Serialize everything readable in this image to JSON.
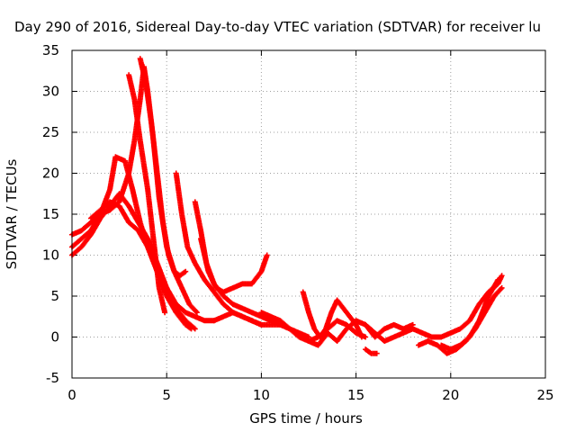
{
  "chart_data": {
    "type": "scatter",
    "title": "Day 290 of 2016, Sidereal Day-to-day VTEC variation (SDTVAR) for receiver lu",
    "xlabel": "GPS time / hours",
    "ylabel": "SDTVAR / TECUs",
    "xlim": [
      0,
      25
    ],
    "ylim": [
      -5,
      35
    ],
    "xticks": [
      "0",
      "5",
      "10",
      "15",
      "20",
      "25"
    ],
    "yticks": [
      "-5",
      "0",
      "5",
      "10",
      "15",
      "20",
      "25",
      "30",
      "35"
    ],
    "grid": true,
    "marker": "+",
    "color": "#ff0000",
    "series": [
      {
        "x": [
          0,
          0.5,
          1,
          1.5,
          2,
          2.5,
          3,
          3.3,
          3.6,
          3.8,
          4.0,
          4.3,
          4.6,
          5.0,
          5.4,
          5.8,
          6.2,
          6.6
        ],
        "y": [
          12.5,
          13,
          14,
          15,
          15.5,
          16.5,
          20,
          24,
          29,
          33,
          30,
          24,
          17,
          11,
          8,
          6,
          4,
          3
        ]
      },
      {
        "x": [
          0,
          0.5,
          1,
          1.5,
          2,
          2.3,
          2.8,
          3.2,
          3.6,
          4.0,
          4.5,
          5.0,
          5.5,
          6.0,
          6.3
        ],
        "y": [
          11,
          12,
          13,
          15,
          18,
          22,
          21.5,
          18,
          14,
          11,
          8,
          5,
          3,
          1.5,
          1
        ]
      },
      {
        "x": [
          0,
          0.5,
          1,
          1.5,
          2,
          2.5,
          3,
          3.5,
          4.0,
          4.5,
          5.0,
          5.5,
          6.0,
          6.5
        ],
        "y": [
          10,
          11,
          12.5,
          14.5,
          16,
          17.5,
          16,
          14,
          12,
          9,
          6,
          3.5,
          2,
          1
        ]
      },
      {
        "x": [
          1,
          1.5,
          2,
          2.5,
          3,
          3.5,
          4.0,
          4.5,
          5.0,
          5.5,
          6.0,
          6.5,
          7.0,
          7.5
        ],
        "y": [
          14.5,
          15.5,
          16.5,
          16,
          14,
          13,
          11,
          8,
          6,
          4,
          3,
          2.5,
          2,
          2
        ]
      },
      {
        "x": [
          3.0,
          3.3,
          3.6,
          4.0,
          4.3,
          4.6,
          4.9
        ],
        "y": [
          32,
          29,
          24,
          18,
          12,
          6,
          3
        ]
      },
      {
        "x": [
          3.6,
          3.9,
          4.2,
          4.5,
          4.8,
          5.1,
          5.4,
          5.7,
          6.0
        ],
        "y": [
          34,
          31,
          26,
          20,
          14,
          10,
          8,
          7.5,
          8
        ]
      },
      {
        "x": [
          5.5,
          5.8,
          6.1,
          6.5,
          7.0,
          7.5,
          8.0,
          8.5,
          9.0,
          9.5,
          10.0
        ],
        "y": [
          20,
          15,
          11,
          9,
          7,
          5.5,
          4,
          3,
          2.5,
          2,
          1.5
        ]
      },
      {
        "x": [
          6.5,
          6.8,
          7.1,
          7.5,
          8.0,
          8.5,
          9.0,
          9.5,
          10.0,
          10.5,
          11.0
        ],
        "y": [
          16.5,
          13,
          9,
          6.5,
          5,
          4,
          3.5,
          3,
          2.5,
          2,
          1.5
        ]
      },
      {
        "x": [
          6.8,
          7.2,
          7.6,
          8.0,
          8.5,
          9.0,
          9.5,
          10.0,
          10.3
        ],
        "y": [
          12,
          8,
          6,
          5.5,
          6,
          6.5,
          6.5,
          8,
          10
        ]
      },
      {
        "x": [
          7.5,
          8.0,
          8.5,
          9.0,
          9.5,
          10.0,
          10.5,
          11.0,
          11.5,
          12.0,
          12.5
        ],
        "y": [
          2,
          2.5,
          3,
          2.5,
          2,
          1.5,
          1.5,
          1.5,
          1,
          0.5,
          0
        ]
      },
      {
        "x": [
          10.0,
          10.5,
          11.0,
          11.5,
          12.0,
          12.5,
          13.0,
          13.5,
          14.0,
          14.5,
          15.0,
          15.5
        ],
        "y": [
          3,
          2.5,
          2,
          1,
          0,
          -0.5,
          0,
          1,
          2,
          1.5,
          0.5,
          0
        ]
      },
      {
        "x": [
          12.2,
          12.5,
          12.8,
          13.1,
          13.4,
          13.7,
          14.0,
          14.5,
          15.0,
          15.3
        ],
        "y": [
          5.5,
          3,
          1,
          0,
          1,
          3,
          4.5,
          3,
          1.5,
          0
        ]
      },
      {
        "x": [
          12.5,
          13.0,
          13.5,
          14.0,
          14.5,
          15.0,
          15.5,
          16.0,
          16.5,
          17.0,
          17.5,
          18.0
        ],
        "y": [
          -0.5,
          -1,
          0.5,
          -0.5,
          1,
          2,
          1.5,
          0,
          1,
          1.5,
          1,
          1.5
        ]
      },
      {
        "x": [
          15.5,
          15.8,
          16.1
        ],
        "y": [
          -1.5,
          -2,
          -2
        ]
      },
      {
        "x": [
          15.5,
          16.0,
          16.5,
          17.0,
          17.5,
          18.0,
          18.5,
          19.0
        ],
        "y": [
          1.5,
          0.5,
          -0.5,
          0,
          0.5,
          1,
          0.5,
          0
        ]
      },
      {
        "x": [
          18.3,
          18.8,
          19.3,
          19.8,
          20.3,
          20.8,
          21.3,
          21.8,
          22.3,
          22.7
        ],
        "y": [
          -1,
          -0.5,
          -1,
          -2,
          -1.5,
          -0.5,
          1,
          3,
          5,
          6
        ]
      },
      {
        "x": [
          19.0,
          19.5,
          20.0,
          20.5,
          21.0,
          21.5,
          22.0,
          22.5,
          22.7
        ],
        "y": [
          0,
          0,
          0.5,
          1,
          2,
          4,
          5.5,
          6.5,
          7.5
        ]
      },
      {
        "x": [
          19.5,
          20.0,
          20.5,
          21.0,
          21.5,
          22.0,
          22.5
        ],
        "y": [
          -1,
          -1.5,
          -1,
          0,
          2,
          5,
          7
        ]
      }
    ]
  }
}
